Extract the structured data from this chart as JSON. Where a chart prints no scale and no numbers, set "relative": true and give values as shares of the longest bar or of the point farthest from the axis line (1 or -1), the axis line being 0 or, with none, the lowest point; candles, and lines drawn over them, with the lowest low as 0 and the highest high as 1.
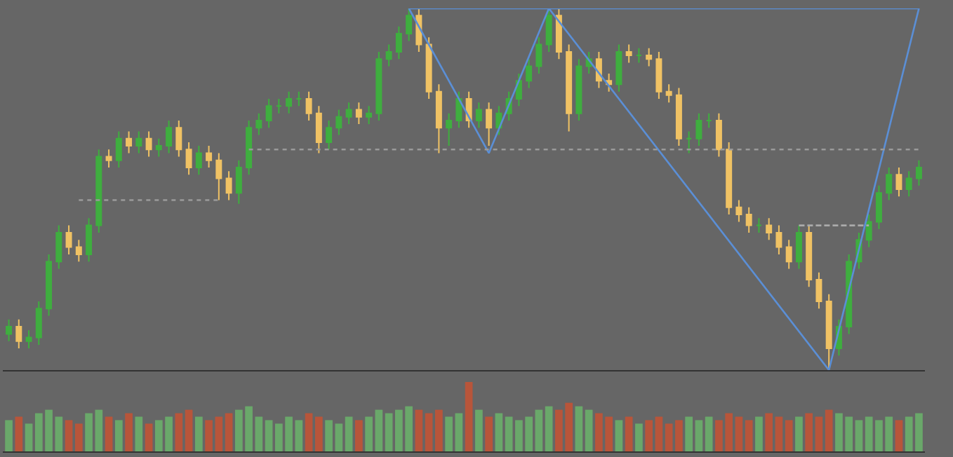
{
  "chart_data": [
    {
      "type": "candlestick",
      "relative": true,
      "grid": false,
      "colors": [
        "#3fae3f",
        "#f0c264",
        "#3fae3f",
        "#3fae3f",
        "#3fae3f",
        "#3fae3f",
        "#f0c264",
        "#f0c264",
        "#3fae3f",
        "#3fae3f",
        "#f0c264",
        "#3fae3f",
        "#f0c264",
        "#3fae3f",
        "#f0c264",
        "#3fae3f",
        "#3fae3f",
        "#f0c264",
        "#f0c264",
        "#3fae3f",
        "#f0c264",
        "#f0c264",
        "#f0c264",
        "#3fae3f",
        "#3fae3f",
        "#3fae3f",
        "#3fae3f",
        "#3fae3f",
        "#3fae3f",
        "#3fae3f",
        "#f0c264",
        "#f0c264",
        "#3fae3f",
        "#3fae3f",
        "#3fae3f",
        "#f0c264",
        "#3fae3f",
        "#3fae3f",
        "#3fae3f",
        "#3fae3f",
        "#3fae3f",
        "#f0c264",
        "#f0c264",
        "#f0c264",
        "#3fae3f",
        "#3fae3f",
        "#f0c264",
        "#3fae3f",
        "#f0c264",
        "#3fae3f",
        "#3fae3f",
        "#3fae3f",
        "#3fae3f",
        "#3fae3f",
        "#3fae3f",
        "#f0c264",
        "#f0c264",
        "#3fae3f",
        "#3fae3f",
        "#f0c264",
        "#f0c264",
        "#3fae3f",
        "#f0c264",
        "#3fae3f",
        "#f0c264",
        "#f0c264",
        "#f0c264",
        "#f0c264",
        "#3fae3f",
        "#3fae3f",
        "#3fae3f",
        "#f0c264",
        "#f0c264",
        "#f0c264",
        "#f0c264",
        "#3fae3f",
        "#f0c264",
        "#f0c264",
        "#f0c264",
        "#3fae3f",
        "#f0c264",
        "#f0c264",
        "#f0c264",
        "#3fae3f",
        "#3fae3f",
        "#3fae3f",
        "#3fae3f",
        "#3fae3f",
        "#3fae3f",
        "#f0c264",
        "#3fae3f",
        "#3fae3f"
      ],
      "categories": [
        null,
        null,
        null,
        null,
        null,
        null,
        null,
        null,
        null,
        null,
        null,
        null,
        null,
        null,
        null,
        null,
        null,
        null,
        null,
        null,
        null,
        null,
        null,
        null,
        null,
        null,
        null,
        null,
        null,
        null,
        null,
        null,
        null,
        null,
        null,
        null,
        null,
        null,
        null,
        null,
        null,
        null,
        null,
        null,
        null,
        null,
        null,
        null,
        null,
        null,
        null,
        null,
        null,
        null,
        null,
        null,
        null,
        null,
        null,
        null,
        null,
        null,
        null,
        null,
        null,
        null,
        null,
        null,
        null,
        null,
        null,
        null,
        null,
        null,
        null,
        null,
        null,
        null,
        null,
        null,
        null,
        null,
        null,
        null,
        null,
        null,
        null,
        null,
        null,
        null,
        null,
        null
      ],
      "ohlc": [
        [
          0.1,
          0.14,
          0.08,
          0.12
        ],
        [
          0.12,
          0.14,
          0.06,
          0.08
        ],
        [
          0.08,
          0.11,
          0.06,
          0.09
        ],
        [
          0.09,
          0.19,
          0.07,
          0.17
        ],
        [
          0.17,
          0.32,
          0.15,
          0.3
        ],
        [
          0.3,
          0.4,
          0.28,
          0.38
        ],
        [
          0.38,
          0.4,
          0.32,
          0.34
        ],
        [
          0.34,
          0.36,
          0.3,
          0.32
        ],
        [
          0.32,
          0.42,
          0.3,
          0.4
        ],
        [
          0.4,
          0.61,
          0.38,
          0.59
        ],
        [
          0.59,
          0.61,
          0.56,
          0.58
        ],
        [
          0.58,
          0.66,
          0.56,
          0.64
        ],
        [
          0.64,
          0.66,
          0.6,
          0.62
        ],
        [
          0.62,
          0.66,
          0.6,
          0.64
        ],
        [
          0.64,
          0.66,
          0.59,
          0.61
        ],
        [
          0.61,
          0.64,
          0.59,
          0.62
        ],
        [
          0.62,
          0.69,
          0.6,
          0.67
        ],
        [
          0.67,
          0.69,
          0.59,
          0.61
        ],
        [
          0.61,
          0.63,
          0.54,
          0.56
        ],
        [
          0.56,
          0.62,
          0.54,
          0.6
        ],
        [
          0.6,
          0.62,
          0.56,
          0.58
        ],
        [
          0.58,
          0.6,
          0.47,
          0.53
        ],
        [
          0.53,
          0.55,
          0.47,
          0.49
        ],
        [
          0.49,
          0.58,
          0.46,
          0.56
        ],
        [
          0.56,
          0.69,
          0.54,
          0.67
        ],
        [
          0.67,
          0.71,
          0.65,
          0.69
        ],
        [
          0.69,
          0.75,
          0.67,
          0.73
        ],
        [
          0.73,
          0.75,
          0.71,
          0.73
        ],
        [
          0.73,
          0.77,
          0.71,
          0.75
        ],
        [
          0.75,
          0.77,
          0.73,
          0.75
        ],
        [
          0.75,
          0.77,
          0.69,
          0.71
        ],
        [
          0.71,
          0.73,
          0.6,
          0.63
        ],
        [
          0.63,
          0.69,
          0.61,
          0.67
        ],
        [
          0.67,
          0.72,
          0.65,
          0.7
        ],
        [
          0.7,
          0.74,
          0.68,
          0.72
        ],
        [
          0.72,
          0.74,
          0.68,
          0.7
        ],
        [
          0.7,
          0.73,
          0.68,
          0.71
        ],
        [
          0.71,
          0.88,
          0.69,
          0.86
        ],
        [
          0.86,
          0.9,
          0.84,
          0.88
        ],
        [
          0.88,
          0.95,
          0.86,
          0.93
        ],
        [
          0.93,
          1.0,
          0.91,
          0.98
        ],
        [
          0.98,
          1.0,
          0.88,
          0.9
        ],
        [
          0.9,
          0.92,
          0.75,
          0.77
        ],
        [
          0.77,
          0.79,
          0.6,
          0.67
        ],
        [
          0.67,
          0.71,
          0.62,
          0.69
        ],
        [
          0.69,
          0.77,
          0.67,
          0.75
        ],
        [
          0.75,
          0.77,
          0.67,
          0.69
        ],
        [
          0.69,
          0.74,
          0.67,
          0.72
        ],
        [
          0.72,
          0.74,
          0.62,
          0.67
        ],
        [
          0.67,
          0.73,
          0.65,
          0.71
        ],
        [
          0.71,
          0.77,
          0.69,
          0.75
        ],
        [
          0.75,
          0.82,
          0.73,
          0.8
        ],
        [
          0.8,
          0.86,
          0.78,
          0.84
        ],
        [
          0.84,
          0.92,
          0.82,
          0.9
        ],
        [
          0.9,
          1.0,
          0.88,
          0.98
        ],
        [
          0.98,
          1.0,
          0.86,
          0.88
        ],
        [
          0.88,
          0.9,
          0.66,
          0.71
        ],
        [
          0.71,
          0.86,
          0.69,
          0.84
        ],
        [
          0.84,
          0.88,
          0.82,
          0.86
        ],
        [
          0.86,
          0.88,
          0.78,
          0.8
        ],
        [
          0.8,
          0.82,
          0.77,
          0.79
        ],
        [
          0.79,
          0.9,
          0.77,
          0.88
        ],
        [
          0.88,
          0.9,
          0.85,
          0.87
        ],
        [
          0.87,
          0.89,
          0.85,
          0.87
        ],
        [
          0.87,
          0.89,
          0.84,
          0.86
        ],
        [
          0.86,
          0.88,
          0.75,
          0.77
        ],
        [
          0.77,
          0.79,
          0.74,
          0.76
        ],
        [
          0.76,
          0.78,
          0.62,
          0.64
        ],
        [
          0.64,
          0.66,
          0.6,
          0.64
        ],
        [
          0.64,
          0.71,
          0.62,
          0.69
        ],
        [
          0.69,
          0.71,
          0.67,
          0.69
        ],
        [
          0.69,
          0.71,
          0.59,
          0.61
        ],
        [
          0.61,
          0.63,
          0.43,
          0.45
        ],
        [
          0.45,
          0.47,
          0.41,
          0.43
        ],
        [
          0.43,
          0.45,
          0.38,
          0.4
        ],
        [
          0.4,
          0.42,
          0.38,
          0.4
        ],
        [
          0.4,
          0.42,
          0.36,
          0.38
        ],
        [
          0.38,
          0.4,
          0.32,
          0.34
        ],
        [
          0.34,
          0.36,
          0.28,
          0.3
        ],
        [
          0.3,
          0.4,
          0.28,
          0.38
        ],
        [
          0.38,
          0.4,
          0.23,
          0.25
        ],
        [
          0.25,
          0.27,
          0.17,
          0.19
        ],
        [
          0.19,
          0.21,
          0.0,
          0.06
        ],
        [
          0.06,
          0.14,
          0.04,
          0.12
        ],
        [
          0.12,
          0.32,
          0.1,
          0.3
        ],
        [
          0.3,
          0.38,
          0.28,
          0.36
        ],
        [
          0.36,
          0.43,
          0.34,
          0.41
        ],
        [
          0.41,
          0.51,
          0.39,
          0.49
        ],
        [
          0.49,
          0.56,
          0.47,
          0.54
        ],
        [
          0.54,
          0.56,
          0.48,
          0.5
        ],
        [
          0.5,
          0.55,
          0.48,
          0.53
        ],
        [
          0.53,
          0.58,
          0.51,
          0.56
        ]
      ],
      "series": [
        {
          "type": "line",
          "color": "#5b8fd6",
          "line_style": "solid",
          "values": [
            null,
            null,
            null,
            null,
            null,
            null,
            null,
            null,
            null,
            null,
            null,
            null,
            null,
            null,
            null,
            null,
            null,
            null,
            null,
            null,
            null,
            null,
            null,
            null,
            null,
            null,
            null,
            null,
            null,
            null,
            null,
            null,
            null,
            null,
            null,
            null,
            null,
            null,
            null,
            null,
            1.0,
            null,
            null,
            null,
            null,
            null,
            null,
            null,
            0.6,
            null,
            null,
            null,
            null,
            null,
            1.0,
            null,
            null,
            null,
            null,
            null,
            null,
            null,
            null,
            null,
            null,
            null,
            null,
            null,
            null,
            null,
            null,
            null,
            null,
            null,
            null,
            null,
            null,
            null,
            null,
            null,
            null,
            null,
            0.0,
            null,
            null,
            null,
            null,
            null,
            null,
            null,
            null,
            1.0
          ]
        },
        {
          "type": "line",
          "color": "#5b8fd6",
          "line_style": "solid",
          "values": [
            null,
            null,
            null,
            null,
            null,
            null,
            null,
            null,
            null,
            null,
            null,
            null,
            null,
            null,
            null,
            null,
            null,
            null,
            null,
            null,
            null,
            null,
            null,
            null,
            null,
            null,
            null,
            null,
            null,
            null,
            null,
            null,
            null,
            null,
            null,
            null,
            null,
            null,
            null,
            null,
            1.0,
            null,
            null,
            null,
            null,
            null,
            null,
            null,
            null,
            null,
            null,
            null,
            null,
            null,
            null,
            null,
            null,
            null,
            null,
            null,
            null,
            null,
            null,
            null,
            null,
            null,
            null,
            null,
            null,
            null,
            null,
            null,
            null,
            null,
            null,
            null,
            null,
            null,
            null,
            null,
            null,
            null,
            null,
            null,
            null,
            null,
            null,
            null,
            null,
            null,
            null,
            1.0
          ]
        },
        {
          "type": "line",
          "color": "#9a9a9a",
          "line_style": "dotted",
          "values": [
            null,
            null,
            null,
            null,
            null,
            null,
            null,
            0.47,
            null,
            null,
            null,
            null,
            null,
            null,
            null,
            null,
            null,
            null,
            null,
            null,
            null,
            0.47,
            null,
            null,
            null,
            null,
            null,
            null,
            null,
            null,
            null,
            null,
            null,
            null,
            null,
            null,
            null,
            null,
            null,
            null,
            null,
            null,
            null,
            null,
            null,
            null,
            null,
            null,
            null,
            null,
            null,
            null,
            null,
            null,
            null,
            null,
            null,
            null,
            null,
            null,
            null,
            null,
            null,
            null,
            null,
            null,
            null,
            null,
            null,
            null,
            null,
            null,
            null,
            null,
            null,
            null,
            null,
            null,
            null,
            null,
            null,
            null,
            null,
            null,
            null,
            null,
            null,
            null,
            null,
            null,
            null,
            null
          ]
        },
        {
          "type": "line",
          "color": "#9a9a9a",
          "line_style": "dotted",
          "values": [
            null,
            null,
            null,
            null,
            null,
            null,
            null,
            null,
            null,
            null,
            null,
            null,
            null,
            null,
            null,
            null,
            null,
            null,
            null,
            null,
            null,
            null,
            null,
            null,
            0.61,
            null,
            null,
            null,
            null,
            null,
            null,
            null,
            null,
            null,
            null,
            null,
            null,
            null,
            null,
            null,
            null,
            null,
            null,
            null,
            null,
            null,
            null,
            null,
            null,
            null,
            null,
            null,
            null,
            null,
            null,
            null,
            null,
            null,
            null,
            null,
            null,
            null,
            null,
            null,
            null,
            null,
            null,
            null,
            null,
            null,
            null,
            null,
            null,
            null,
            null,
            null,
            null,
            null,
            null,
            null,
            null,
            null,
            null,
            null,
            null,
            null,
            null,
            null,
            null,
            null,
            null,
            0.61
          ]
        },
        {
          "type": "line",
          "color": "#aaaaaa",
          "line_style": "dashed",
          "values": [
            null,
            null,
            null,
            null,
            null,
            null,
            null,
            null,
            null,
            null,
            null,
            null,
            null,
            null,
            null,
            null,
            null,
            null,
            null,
            null,
            null,
            null,
            null,
            null,
            null,
            null,
            null,
            null,
            null,
            null,
            null,
            null,
            null,
            null,
            null,
            null,
            null,
            null,
            null,
            null,
            null,
            null,
            null,
            null,
            null,
            null,
            null,
            null,
            null,
            null,
            null,
            null,
            null,
            null,
            null,
            null,
            null,
            null,
            null,
            null,
            null,
            null,
            null,
            null,
            null,
            null,
            null,
            null,
            null,
            null,
            null,
            null,
            null,
            null,
            null,
            null,
            null,
            null,
            null,
            0.4,
            null,
            null,
            null,
            null,
            null,
            null,
            0.4,
            null,
            null,
            null,
            null,
            null
          ]
        }
      ]
    },
    {
      "type": "bar",
      "relative": true,
      "grid": false,
      "categories": [
        null,
        null,
        null,
        null,
        null,
        null,
        null,
        null,
        null,
        null,
        null,
        null,
        null,
        null,
        null,
        null,
        null,
        null,
        null,
        null,
        null,
        null,
        null,
        null,
        null,
        null,
        null,
        null,
        null,
        null,
        null,
        null,
        null,
        null,
        null,
        null,
        null,
        null,
        null,
        null,
        null,
        null,
        null,
        null,
        null,
        null,
        null,
        null,
        null,
        null,
        null,
        null,
        null,
        null,
        null,
        null,
        null,
        null,
        null,
        null,
        null,
        null,
        null,
        null,
        null,
        null,
        null,
        null,
        null,
        null,
        null,
        null,
        null,
        null,
        null,
        null,
        null,
        null,
        null,
        null,
        null,
        null,
        null,
        null,
        null,
        null,
        null,
        null,
        null,
        null,
        null,
        null
      ],
      "values": [
        0.45,
        0.5,
        0.4,
        0.55,
        0.6,
        0.5,
        0.45,
        0.4,
        0.55,
        0.6,
        0.5,
        0.45,
        0.55,
        0.5,
        0.4,
        0.45,
        0.5,
        0.55,
        0.6,
        0.5,
        0.45,
        0.5,
        0.55,
        0.6,
        0.65,
        0.5,
        0.45,
        0.4,
        0.5,
        0.45,
        0.55,
        0.5,
        0.45,
        0.4,
        0.5,
        0.45,
        0.5,
        0.6,
        0.55,
        0.6,
        0.65,
        0.6,
        0.55,
        0.6,
        0.5,
        0.55,
        1.0,
        0.6,
        0.5,
        0.55,
        0.5,
        0.45,
        0.5,
        0.6,
        0.65,
        0.6,
        0.7,
        0.65,
        0.6,
        0.55,
        0.5,
        0.45,
        0.5,
        0.4,
        0.45,
        0.5,
        0.4,
        0.45,
        0.5,
        0.45,
        0.5,
        0.45,
        0.55,
        0.5,
        0.45,
        0.5,
        0.55,
        0.5,
        0.45,
        0.5,
        0.55,
        0.5,
        0.6,
        0.55,
        0.5,
        0.45,
        0.5,
        0.45,
        0.5,
        0.45,
        0.5,
        0.55
      ],
      "colors": [
        "#6aa86a",
        "#b8553a",
        "#6aa86a",
        "#6aa86a",
        "#6aa86a",
        "#6aa86a",
        "#b8553a",
        "#b8553a",
        "#6aa86a",
        "#6aa86a",
        "#b8553a",
        "#6aa86a",
        "#b8553a",
        "#6aa86a",
        "#b8553a",
        "#6aa86a",
        "#6aa86a",
        "#b8553a",
        "#b8553a",
        "#6aa86a",
        "#b8553a",
        "#b8553a",
        "#b8553a",
        "#6aa86a",
        "#6aa86a",
        "#6aa86a",
        "#6aa86a",
        "#6aa86a",
        "#6aa86a",
        "#6aa86a",
        "#b8553a",
        "#b8553a",
        "#6aa86a",
        "#6aa86a",
        "#6aa86a",
        "#b8553a",
        "#6aa86a",
        "#6aa86a",
        "#6aa86a",
        "#6aa86a",
        "#6aa86a",
        "#b8553a",
        "#b8553a",
        "#b8553a",
        "#6aa86a",
        "#6aa86a",
        "#b8553a",
        "#6aa86a",
        "#b8553a",
        "#6aa86a",
        "#6aa86a",
        "#6aa86a",
        "#6aa86a",
        "#6aa86a",
        "#6aa86a",
        "#b8553a",
        "#b8553a",
        "#6aa86a",
        "#6aa86a",
        "#b8553a",
        "#b8553a",
        "#6aa86a",
        "#b8553a",
        "#6aa86a",
        "#b8553a",
        "#b8553a",
        "#b8553a",
        "#b8553a",
        "#6aa86a",
        "#6aa86a",
        "#6aa86a",
        "#b8553a",
        "#b8553a",
        "#b8553a",
        "#b8553a",
        "#6aa86a",
        "#b8553a",
        "#b8553a",
        "#b8553a",
        "#6aa86a",
        "#b8553a",
        "#b8553a",
        "#b8553a",
        "#6aa86a",
        "#6aa86a",
        "#6aa86a",
        "#6aa86a",
        "#6aa86a",
        "#6aa86a",
        "#b8553a",
        "#6aa86a",
        "#6aa86a"
      ]
    }
  ]
}
